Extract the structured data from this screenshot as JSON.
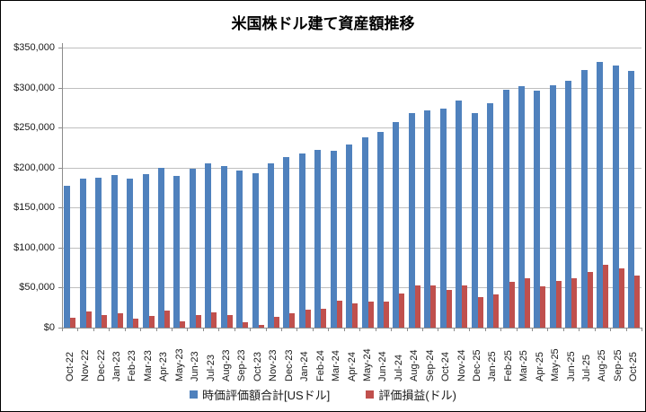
{
  "chart": {
    "colors": {
      "total_series": "#4F81BD",
      "profit_series": "#C0504D",
      "gridline": "#BFBFBF",
      "axis": "#8C8C8C",
      "text": "#1A1A1A"
    }
  },
  "legend": {
    "total_label": "時価評価額合計[USドル]",
    "profit_label": "評価損益(ドル)"
  },
  "chart_data": {
    "type": "bar",
    "title": "米国株ドル建て資産額推移",
    "xlabel": "",
    "ylabel": "",
    "ylim": [
      0,
      350000
    ],
    "ytick_interval": 50000,
    "ytick_labels": [
      "$0",
      "$50,000",
      "$100,000",
      "$150,000",
      "$200,000",
      "$250,000",
      "$300,000",
      "$350,000"
    ],
    "grid": true,
    "legend_position": "bottom",
    "categories": [
      "Oct-22",
      "Nov-22",
      "Dec-22",
      "Jan-23",
      "Feb-23",
      "Mar-23",
      "Apr-23",
      "May-23",
      "Jun-23",
      "Jul-23",
      "Aug-23",
      "Sep-23",
      "Oct-23",
      "Nov-23",
      "Dec-23",
      "Jan-24",
      "Feb-24",
      "Mar-24",
      "Apr-24",
      "May-24",
      "Jun-24",
      "Jul-24",
      "Aug-24",
      "Sep-24",
      "Oct-24",
      "Nov-24",
      "Dec-25",
      "Jan-25",
      "Feb-25",
      "Mar-25",
      "Apr-25",
      "May-25",
      "Jun-25",
      "Jul-25",
      "Aug-25",
      "Sep-25",
      "Oct-25"
    ],
    "series": [
      {
        "name": "時価評価額合計[USドル]",
        "color": "#4F81BD",
        "values": [
          177000,
          186000,
          187000,
          191000,
          186000,
          192000,
          200000,
          190000,
          198000,
          205000,
          202000,
          196000,
          193000,
          205000,
          213000,
          218000,
          222000,
          221000,
          229000,
          238000,
          245000,
          257000,
          268000,
          271000,
          274000,
          284000,
          268000,
          280000,
          297000,
          302000,
          296000,
          303000,
          309000,
          322000,
          332000,
          328000,
          321000
        ]
      },
      {
        "name": "評価損益(ドル)",
        "color": "#C0504D",
        "values": [
          12000,
          20000,
          16000,
          18000,
          11000,
          15000,
          21000,
          8000,
          16000,
          19000,
          16000,
          7000,
          3000,
          14000,
          18000,
          22000,
          23000,
          34000,
          30000,
          33000,
          33000,
          43000,
          53000,
          53000,
          47000,
          53000,
          38000,
          41000,
          57000,
          62000,
          52000,
          58000,
          62000,
          69000,
          79000,
          74000,
          65000
        ]
      }
    ]
  }
}
